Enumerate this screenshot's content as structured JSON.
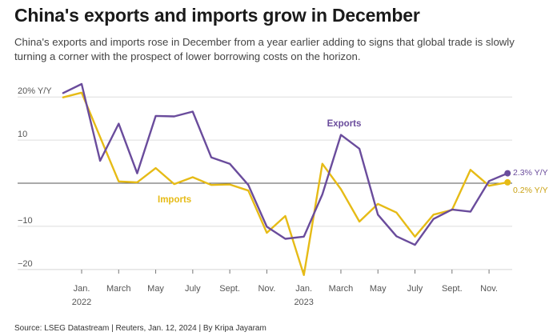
{
  "header": {
    "title": "China's exports and imports grow in December",
    "subtitle": "China's exports and imports rose in December from a year earlier adding to signs that global trade is slowly turning a corner with the prospect of lower borrowing costs on the horizon."
  },
  "footer": {
    "source": "Source: LSEG Datastream | Reuters, Jan. 12, 2024 | By Kripa Jayaram"
  },
  "colors": {
    "exports": "#6a4c9c",
    "imports": "#e6bb16",
    "grid": "#dddddd",
    "zero": "#555555"
  },
  "chart_data": {
    "type": "line",
    "title": "China's exports and imports grow in December",
    "ylim": [
      -22,
      22
    ],
    "grid": true,
    "y_ticks": [
      {
        "value": 20,
        "label": "20% Y/Y"
      },
      {
        "value": 10,
        "label": "10"
      },
      {
        "value": -10,
        "label": "−10"
      },
      {
        "value": -20,
        "label": "−20"
      }
    ],
    "x_ticks": [
      {
        "value": 0,
        "label": "Jan.",
        "sublabel": "2022"
      },
      {
        "value": 2,
        "label": "March",
        "sublabel": ""
      },
      {
        "value": 4,
        "label": "May",
        "sublabel": ""
      },
      {
        "value": 6,
        "label": "July",
        "sublabel": ""
      },
      {
        "value": 8,
        "label": "Sept.",
        "sublabel": ""
      },
      {
        "value": 10,
        "label": "Nov.",
        "sublabel": ""
      },
      {
        "value": 12,
        "label": "Jan.",
        "sublabel": "2023"
      },
      {
        "value": 14,
        "label": "March",
        "sublabel": ""
      },
      {
        "value": 16,
        "label": "May",
        "sublabel": ""
      },
      {
        "value": 18,
        "label": "July",
        "sublabel": ""
      },
      {
        "value": 20,
        "label": "Sept.",
        "sublabel": ""
      },
      {
        "value": 22,
        "label": "Nov.",
        "sublabel": ""
      }
    ],
    "x": [
      -1,
      0,
      1,
      2,
      3,
      4,
      5,
      6,
      7,
      8,
      9,
      10,
      11,
      12,
      13,
      14,
      15,
      16,
      17,
      18,
      19,
      20,
      21,
      22,
      23
    ],
    "series": [
      {
        "name": "Exports",
        "color": "#6a4c9c",
        "values": [
          20.9,
          23.0,
          5.2,
          13.8,
          2.3,
          15.6,
          15.5,
          16.6,
          6.0,
          4.5,
          -0.4,
          -10.1,
          -12.9,
          -12.4,
          -2.6,
          11.2,
          8.0,
          -7.3,
          -12.3,
          -14.3,
          -8.3,
          -6.1,
          -6.6,
          0.5,
          2.3
        ]
      },
      {
        "name": "Imports",
        "color": "#e6bb16",
        "values": [
          19.9,
          21.0,
          10.7,
          0.4,
          0.2,
          3.5,
          -0.2,
          1.4,
          -0.4,
          -0.3,
          -1.7,
          -11.5,
          -7.6,
          -21.3,
          4.5,
          -1.4,
          -8.9,
          -4.8,
          -6.8,
          -12.4,
          -7.3,
          -6.2,
          3.1,
          -0.6,
          0.2
        ]
      }
    ],
    "annotations": [
      {
        "series": "Exports",
        "text": "Exports"
      },
      {
        "series": "Imports",
        "text": "Imports"
      },
      {
        "series": "Exports",
        "text": "2.3% Y/Y"
      },
      {
        "series": "Imports",
        "text": "0.2% Y/Y"
      }
    ]
  }
}
